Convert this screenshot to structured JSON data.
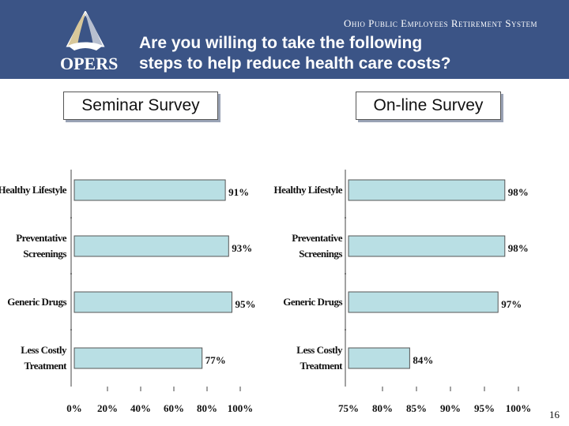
{
  "header": {
    "org_name": "Ohio Public Employees Retirement System",
    "logo_text": "OPERS",
    "title_line1": "Are you willing to take the following",
    "title_line2": "steps to help reduce health care costs?",
    "logo_icon": "opers-triangle-logo-icon",
    "bg_color": "#3b5486"
  },
  "page_number": "16",
  "chart_data": [
    {
      "type": "bar",
      "orientation": "horizontal",
      "title": "Seminar Survey",
      "categories": [
        [
          "Healthy Lifestyle"
        ],
        [
          "Preventative",
          "Screenings"
        ],
        [
          "Generic Drugs"
        ],
        [
          "Less Costly",
          "Treatment"
        ]
      ],
      "values": [
        91,
        93,
        95,
        77
      ],
      "value_labels": [
        "91%",
        "93%",
        "95%",
        "77%"
      ],
      "xlim": [
        0,
        100
      ],
      "x_ticks": [
        0,
        20,
        40,
        60,
        80,
        100
      ],
      "x_tick_labels": [
        "0%",
        "20%",
        "40%",
        "60%",
        "80%",
        "100%"
      ],
      "bar_color": "#b9dfe4",
      "grid": false,
      "legend": "none"
    },
    {
      "type": "bar",
      "orientation": "horizontal",
      "title": "On-line Survey",
      "categories": [
        [
          "Healthy Lifestyle"
        ],
        [
          "Preventative",
          "Screenings"
        ],
        [
          "Generic Drugs"
        ],
        [
          "Less Costly",
          "Treatment"
        ]
      ],
      "values": [
        98,
        98,
        97,
        84
      ],
      "value_labels": [
        "98%",
        "98%",
        "97%",
        "84%"
      ],
      "xlim": [
        75,
        100
      ],
      "x_ticks": [
        75,
        80,
        85,
        90,
        95,
        100
      ],
      "x_tick_labels": [
        "75%",
        "80%",
        "85%",
        "90%",
        "95%",
        "100%"
      ],
      "bar_color": "#b9dfe4",
      "grid": false,
      "legend": "none"
    }
  ]
}
